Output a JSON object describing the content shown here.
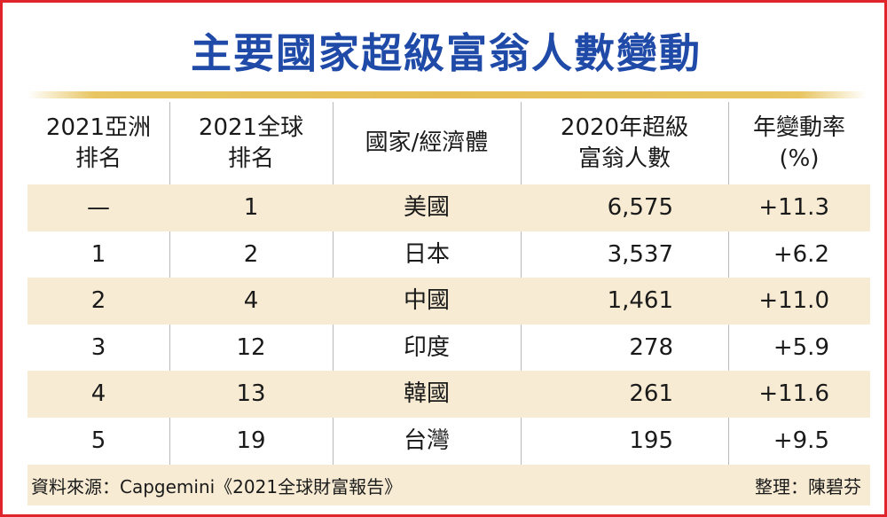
{
  "title": "主要國家超級富翁人數變動",
  "headers": [
    [
      "2021亞洲",
      "排名"
    ],
    [
      "2021全球",
      "排名"
    ],
    [
      "國家/經濟體"
    ],
    [
      "2020年超級",
      "富翁人數"
    ],
    [
      "年變動率",
      "(%)"
    ]
  ],
  "rows": [
    {
      "asia": "—",
      "global": "1",
      "country": "美國",
      "count": "6,575",
      "change": "+11.3"
    },
    {
      "asia": "1",
      "global": "2",
      "country": "日本",
      "count": "3,537",
      "change": "+6.2"
    },
    {
      "asia": "2",
      "global": "4",
      "country": "中國",
      "count": "1,461",
      "change": "+11.0"
    },
    {
      "asia": "3",
      "global": "12",
      "country": "印度",
      "count": "278",
      "change": "+5.9"
    },
    {
      "asia": "4",
      "global": "13",
      "country": "韓國",
      "count": "261",
      "change": "+11.6"
    },
    {
      "asia": "5",
      "global": "19",
      "country": "台灣",
      "count": "195",
      "change": "+9.5"
    }
  ],
  "source": "資料來源：Capgemini《2021全球財富報告》",
  "compiled_by": "整理：陳碧芬",
  "colors": {
    "title": "#1f4aa8",
    "border": "#e0242b",
    "shade": "#f7ebd3",
    "gold": "#e5bf55"
  }
}
